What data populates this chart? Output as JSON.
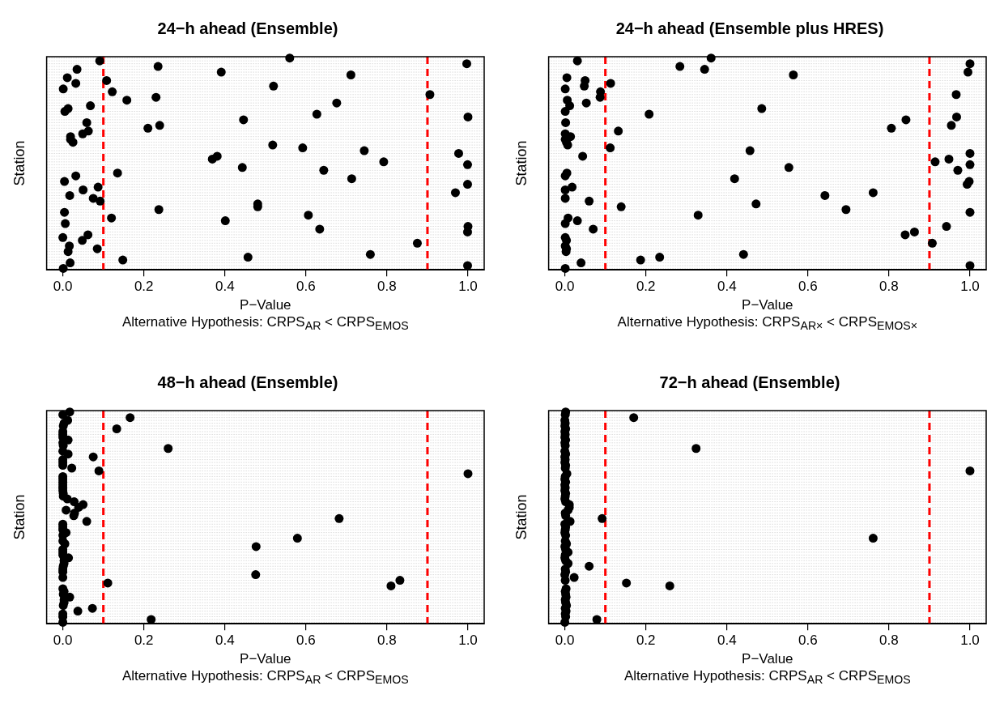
{
  "chart_data": [
    {
      "type": "scatter",
      "orientation": "horizontal",
      "title": "24−h ahead (Ensemble)",
      "xlabel": "P−Value",
      "ylabel": "Station",
      "annotations": [
        "Alternative Hypothesis: CRPS$_{AR}$ < CRPS$_{EMOS}$"
      ],
      "marker": "circle",
      "grid": "y",
      "tick_labels": "x",
      "xlim": [
        -0.04,
        1.04
      ],
      "xticks": [
        {
          "value": 0,
          "label": "0.0"
        },
        {
          "value": 0.2,
          "label": "0.2"
        },
        {
          "value": 0.4,
          "label": "0.4"
        },
        {
          "value": 0.6,
          "label": "0.6"
        },
        {
          "value": 0.8,
          "label": "0.8"
        },
        {
          "value": 1,
          "label": "1.0"
        }
      ],
      "ref_lines": [
        {
          "axis": "x",
          "value": 0.1,
          "color": "#ff0000",
          "line_style": "dashed"
        },
        {
          "axis": "x",
          "value": 0.9,
          "color": "#ff0000",
          "line_style": "dashed"
        }
      ],
      "categories": [
        null,
        null,
        null,
        null,
        null,
        null,
        null,
        null,
        null,
        null,
        null,
        null,
        null,
        null,
        null,
        null,
        null,
        null,
        null,
        null,
        null,
        null,
        null,
        null,
        null,
        null,
        null,
        null,
        null,
        null,
        null,
        null,
        null,
        null,
        null,
        null,
        null,
        null,
        null,
        null,
        null,
        null,
        null,
        null,
        null,
        null,
        null,
        null,
        null,
        null,
        null,
        null,
        null,
        null,
        null,
        null,
        null,
        null,
        null,
        null,
        null,
        null,
        null,
        null,
        null,
        null,
        null,
        null,
        null,
        null,
        null,
        null,
        null,
        null,
        null,
        null
      ],
      "color": "#000000",
      "values": [
        0.56,
        0.091,
        0.997,
        0.235,
        0.035,
        0.391,
        0.711,
        0.011,
        0.108,
        0.032,
        0.52,
        0.001,
        0.122,
        0.906,
        0.23,
        0.158,
        0.676,
        0.068,
        0.013,
        0.005,
        0.627,
        1.0,
        0.446,
        0.059,
        0.239,
        0.21,
        0.063,
        0.049,
        0.019,
        0.019,
        0.025,
        0.518,
        0.592,
        0.744,
        0.977,
        0.381,
        0.369,
        0.792,
        0.999,
        0.443,
        0.644,
        0.135,
        0.032,
        0.713,
        0.004,
        0.999,
        0.087,
        0.05,
        0.969,
        0.017,
        0.075,
        0.092,
        0.481,
        0.481,
        0.237,
        0.004,
        0.606,
        0.12,
        0.401,
        0.006,
        1.0,
        0.634,
        0.999,
        0.062,
        0.0,
        0.048,
        0.875,
        0.016,
        0.085,
        0.013,
        0.759,
        0.457,
        0.148,
        0.018,
        0.999,
        0.001
      ]
    },
    {
      "type": "scatter",
      "orientation": "horizontal",
      "title": "24−h ahead (Ensemble plus HRES)",
      "xlabel": "P−Value",
      "ylabel": "Station",
      "annotations": [
        "Alternative Hypothesis: CRPS$_{AR×}$ < CRPS$_{EMOS×}$"
      ],
      "marker": "circle",
      "grid": "y",
      "tick_labels": "x",
      "xlim": [
        -0.04,
        1.04
      ],
      "xticks": [
        {
          "value": 0,
          "label": "0.0"
        },
        {
          "value": 0.2,
          "label": "0.2"
        },
        {
          "value": 0.4,
          "label": "0.4"
        },
        {
          "value": 0.6,
          "label": "0.6"
        },
        {
          "value": 0.8,
          "label": "0.8"
        },
        {
          "value": 1,
          "label": "1.0"
        }
      ],
      "ref_lines": [
        {
          "axis": "x",
          "value": 0.1,
          "color": "#ff0000",
          "line_style": "dashed"
        },
        {
          "axis": "x",
          "value": 0.9,
          "color": "#ff0000",
          "line_style": "dashed"
        }
      ],
      "categories": [
        null,
        null,
        null,
        null,
        null,
        null,
        null,
        null,
        null,
        null,
        null,
        null,
        null,
        null,
        null,
        null,
        null,
        null,
        null,
        null,
        null,
        null,
        null,
        null,
        null,
        null,
        null,
        null,
        null,
        null,
        null,
        null,
        null,
        null,
        null,
        null,
        null,
        null,
        null,
        null,
        null,
        null,
        null,
        null,
        null,
        null,
        null,
        null,
        null,
        null,
        null,
        null,
        null,
        null,
        null,
        null,
        null,
        null,
        null,
        null,
        null,
        null,
        null,
        null,
        null,
        null,
        null,
        null,
        null,
        null,
        null,
        null,
        null,
        null,
        null,
        null
      ],
      "color": "#000000",
      "values": [
        0.361,
        0.031,
        1.0,
        0.284,
        0.345,
        0.995,
        0.564,
        0.005,
        0.05,
        0.113,
        0.048,
        0.001,
        0.088,
        0.966,
        0.087,
        0.006,
        0.053,
        0.012,
        0.486,
        0.001,
        0.208,
        0.967,
        0.842,
        0.002,
        0.954,
        0.806,
        0.132,
        0.001,
        0.014,
        0.001,
        0.004,
        0.007,
        0.112,
        0.457,
        1.0,
        0.044,
        0.948,
        0.914,
        1.0,
        0.553,
        0.97,
        0.005,
        0.001,
        0.419,
        0.998,
        0.993,
        0.018,
        0.001,
        0.761,
        0.642,
        0.001,
        0.06,
        0.472,
        0.139,
        0.694,
        1.0,
        0.329,
        0.008,
        0.031,
        0.001,
        0.942,
        0.07,
        0.863,
        0.84,
        0.001,
        0.004,
        0.907,
        0.001,
        0.004,
        0.003,
        0.441,
        0.234,
        0.187,
        0.04,
        1.0,
        0.001
      ]
    },
    {
      "type": "scatter",
      "orientation": "horizontal",
      "title": "48−h ahead (Ensemble)",
      "xlabel": "P−Value",
      "ylabel": "Station",
      "annotations": [
        "Alternative Hypothesis: CRPS$_{AR}$ < CRPS$_{EMOS}$"
      ],
      "marker": "circle",
      "grid": "y",
      "tick_labels": "x",
      "xlim": [
        -0.04,
        1.04
      ],
      "xticks": [
        {
          "value": 0,
          "label": "0.0"
        },
        {
          "value": 0.2,
          "label": "0.2"
        },
        {
          "value": 0.4,
          "label": "0.4"
        },
        {
          "value": 0.6,
          "label": "0.6"
        },
        {
          "value": 0.8,
          "label": "0.8"
        },
        {
          "value": 1,
          "label": "1.0"
        }
      ],
      "ref_lines": [
        {
          "axis": "x",
          "value": 0.1,
          "color": "#ff0000",
          "line_style": "dashed"
        },
        {
          "axis": "x",
          "value": 0.9,
          "color": "#ff0000",
          "line_style": "dashed"
        }
      ],
      "categories": [
        null,
        null,
        null,
        null,
        null,
        null,
        null,
        null,
        null,
        null,
        null,
        null,
        null,
        null,
        null,
        null,
        null,
        null,
        null,
        null,
        null,
        null,
        null,
        null,
        null,
        null,
        null,
        null,
        null,
        null,
        null,
        null,
        null,
        null,
        null,
        null,
        null,
        null,
        null,
        null,
        null,
        null,
        null,
        null,
        null,
        null,
        null,
        null,
        null,
        null,
        null,
        null,
        null,
        null,
        null,
        null,
        null,
        null,
        null,
        null,
        null,
        null,
        null,
        null,
        null,
        null,
        null,
        null,
        null,
        null,
        null,
        null,
        null,
        null,
        null,
        null
      ],
      "color": "#000000",
      "values": [
        0.017,
        0.0,
        0.166,
        0.012,
        0.003,
        0.001,
        0.133,
        0.0,
        0.0,
        0.0,
        0.013,
        0.0,
        0.001,
        0.26,
        0.0,
        0.013,
        0.075,
        0.0,
        0.0,
        0.0,
        0.022,
        0.089,
        1.0,
        0,
        0,
        0,
        0,
        0,
        0,
        0.001,
        0.001,
        0.011,
        0.028,
        0.05,
        0.039,
        0.008,
        0.029,
        0.027,
        0.682,
        0.059,
        0,
        0,
        0,
        0.008,
        0,
        0.579,
        0,
        0.005,
        0.477,
        0,
        0,
        0,
        0.014,
        0.003,
        0.003,
        0.001,
        0,
        0,
        0.476,
        0,
        0.832,
        0.111,
        0.81,
        0,
        0.003,
        0.001,
        0.017,
        0.003,
        0.003,
        0.001,
        0.073,
        0.037,
        0,
        0,
        0.218,
        0
      ]
    },
    {
      "type": "scatter",
      "orientation": "horizontal",
      "title": "72−h ahead (Ensemble)",
      "xlabel": "P−Value",
      "ylabel": "Station",
      "annotations": [
        "Alternative Hypothesis: CRPS$_{AR}$ < CRPS$_{EMOS}$"
      ],
      "marker": "circle",
      "grid": "y",
      "tick_labels": "x",
      "xlim": [
        -0.04,
        1.04
      ],
      "xticks": [
        {
          "value": 0,
          "label": "0.0"
        },
        {
          "value": 0.2,
          "label": "0.2"
        },
        {
          "value": 0.4,
          "label": "0.4"
        },
        {
          "value": 0.6,
          "label": "0.6"
        },
        {
          "value": 0.8,
          "label": "0.8"
        },
        {
          "value": 1,
          "label": "1.0"
        }
      ],
      "ref_lines": [
        {
          "axis": "x",
          "value": 0.1,
          "color": "#ff0000",
          "line_style": "dashed"
        },
        {
          "axis": "x",
          "value": 0.9,
          "color": "#ff0000",
          "line_style": "dashed"
        }
      ],
      "categories": [
        null,
        null,
        null,
        null,
        null,
        null,
        null,
        null,
        null,
        null,
        null,
        null,
        null,
        null,
        null,
        null,
        null,
        null,
        null,
        null,
        null,
        null,
        null,
        null,
        null,
        null,
        null,
        null,
        null,
        null,
        null,
        null,
        null,
        null,
        null,
        null,
        null,
        null,
        null,
        null,
        null,
        null,
        null,
        null,
        null,
        null,
        null,
        null,
        null,
        null,
        null,
        null,
        null,
        null,
        null,
        null,
        null,
        null,
        null,
        null,
        null,
        null,
        null,
        null,
        null,
        null,
        null,
        null,
        null,
        null,
        null,
        null,
        null,
        null,
        null,
        null
      ],
      "color": "#000000",
      "values": [
        0.002,
        0.001,
        0.17,
        0,
        0.001,
        0,
        0.002,
        0,
        0.001,
        0,
        0.002,
        0,
        0.001,
        0.324,
        0,
        0.002,
        0,
        0.001,
        0,
        0.002,
        0.001,
        1.0,
        0.005,
        0.001,
        0,
        0.002,
        0,
        0.001,
        0,
        0.002,
        0.001,
        0,
        0.002,
        0.011,
        0.011,
        0.008,
        0.001,
        0.002,
        0.092,
        0.013,
        0,
        0.002,
        0.001,
        0,
        0.002,
        0.761,
        0.001,
        0.004,
        0,
        0.002,
        0.008,
        0.001,
        0,
        0.002,
        0.008,
        0.06,
        0.001,
        0.002,
        0,
        0.023,
        0.001,
        0.152,
        0.259,
        0.003,
        0.001,
        0.002,
        0.003,
        0.001,
        0.002,
        0.004,
        0.001,
        0.003,
        0.001,
        0.002,
        0.079,
        0
      ]
    }
  ]
}
